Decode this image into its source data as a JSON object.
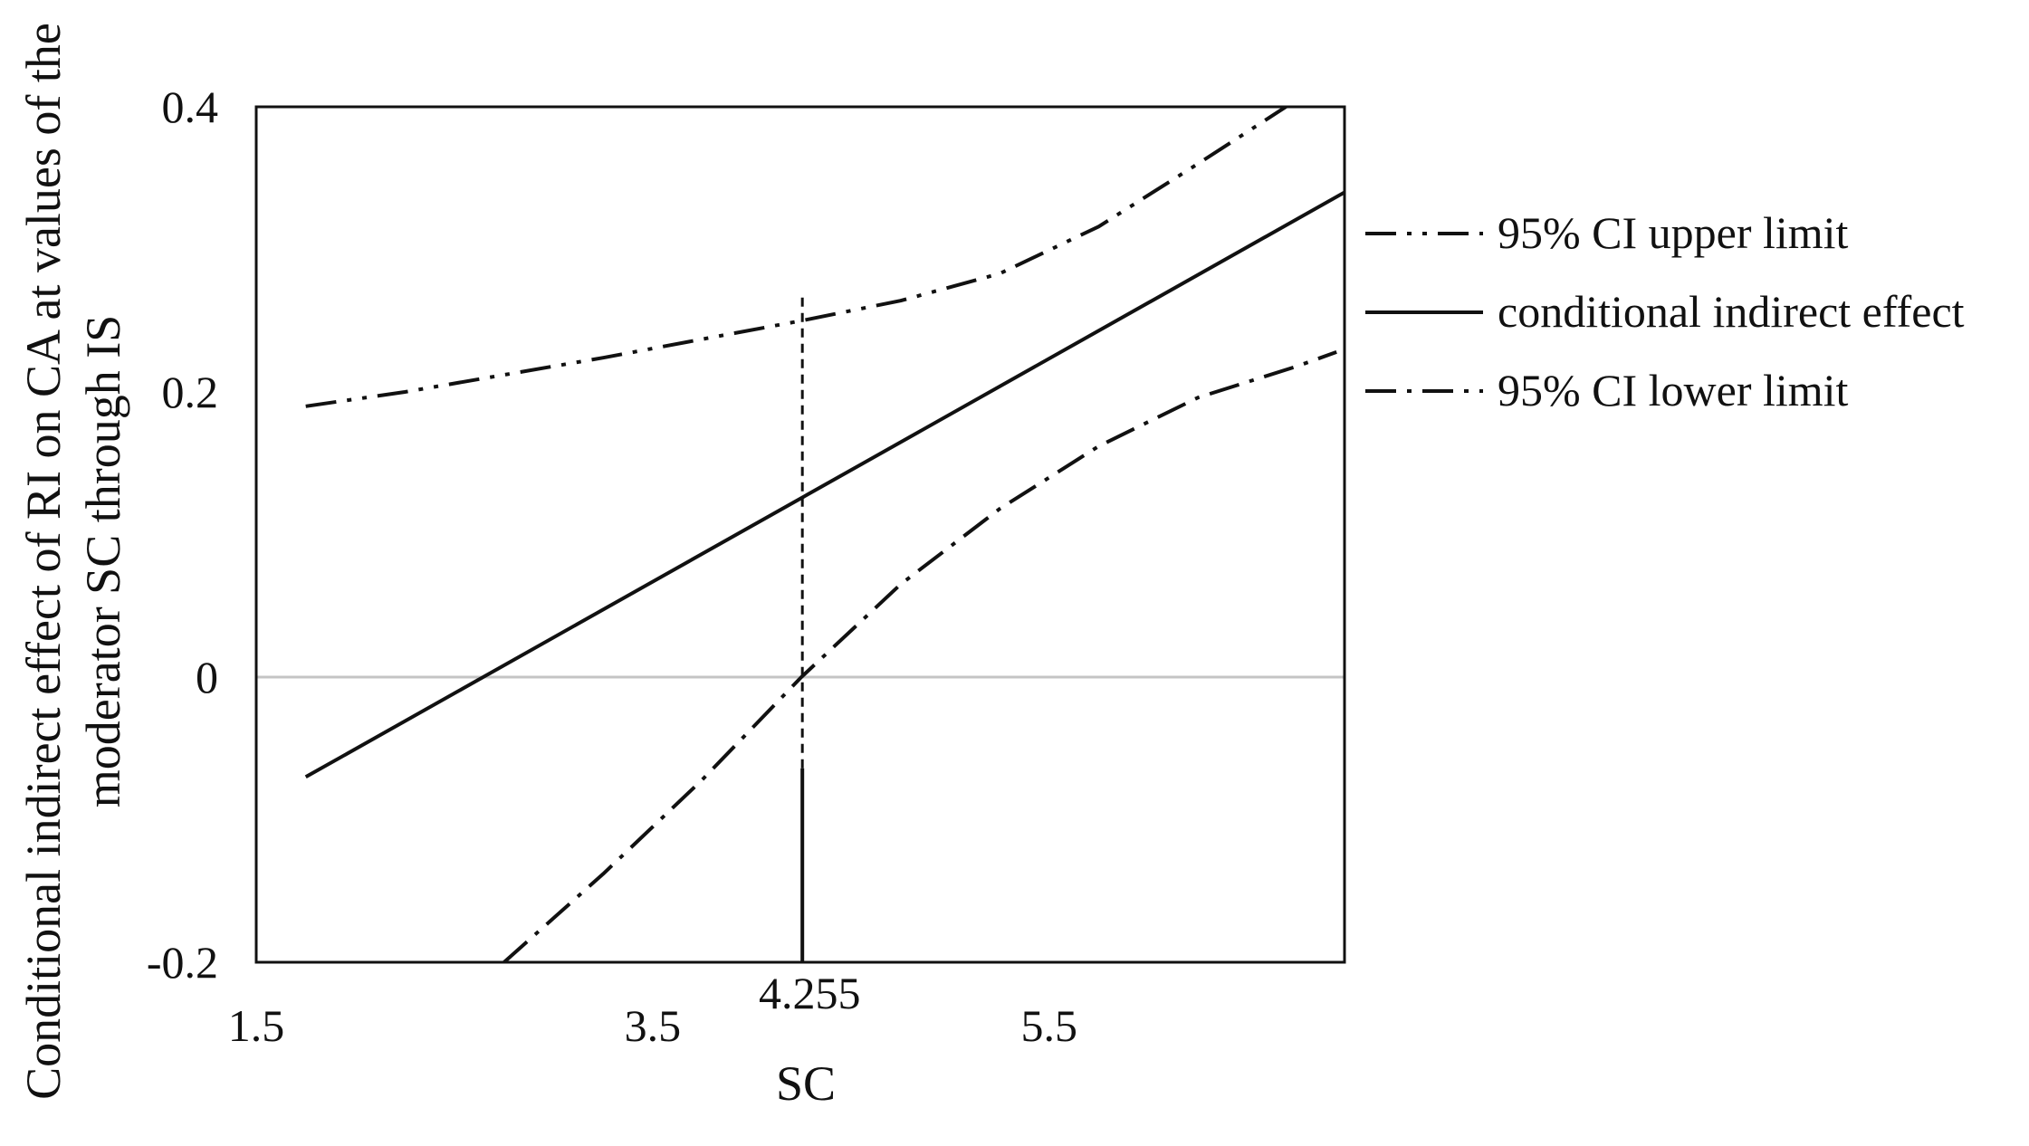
{
  "chart_data": {
    "type": "line",
    "title": "",
    "xlabel": "SC",
    "ylabel_lines": [
      "Conditional indirect effect of  RI on CA at values of the",
      "moderator SC through IS"
    ],
    "xlim": [
      1.5,
      6.99
    ],
    "ylim": [
      -0.2,
      0.4
    ],
    "x_ticks": [
      {
        "value": 1.5,
        "label": "1.5"
      },
      {
        "value": 3.5,
        "label": "3.5"
      },
      {
        "value": 5.5,
        "label": "5.5"
      }
    ],
    "y_ticks": [
      {
        "value": 0.4,
        "label": "0.4"
      },
      {
        "value": 0.2,
        "label": "0.2"
      },
      {
        "value": 0,
        "label": "0"
      },
      {
        "value": -0.2,
        "label": "-0.2"
      }
    ],
    "zero_line": true,
    "grid": false,
    "legend_position": "right",
    "marker": {
      "x": 4.255,
      "label": "4.255",
      "solid_y": [
        -0.2,
        -0.064
      ],
      "dashed_y": [
        -0.064,
        0.27
      ]
    },
    "series": [
      {
        "name": "95% CI upper limit",
        "style": "dash-dot-dot",
        "x": [
          1.75,
          2.25,
          2.75,
          3.25,
          3.75,
          4.25,
          4.75,
          5.25,
          5.75,
          6.25,
          6.75
        ],
        "y": [
          0.19,
          0.2,
          0.212,
          0.224,
          0.237,
          0.25,
          0.264,
          0.283,
          0.316,
          0.36,
          0.405
        ]
      },
      {
        "name": "conditional indirect effect",
        "style": "solid",
        "x": [
          1.75,
          6.99
        ],
        "y": [
          -0.07,
          0.34
        ]
      },
      {
        "name": "95% CI lower limit",
        "style": "dash-dot",
        "x": [
          2.75,
          3.25,
          3.75,
          4.25,
          4.75,
          5.25,
          5.75,
          6.25,
          6.75,
          6.95
        ],
        "y": [
          -0.2,
          -0.138,
          -0.072,
          0.0,
          0.065,
          0.118,
          0.162,
          0.196,
          0.218,
          0.228
        ]
      }
    ],
    "legend_order": [
      "95% CI upper limit",
      "conditional indirect effect",
      "95% CI lower limit"
    ]
  }
}
